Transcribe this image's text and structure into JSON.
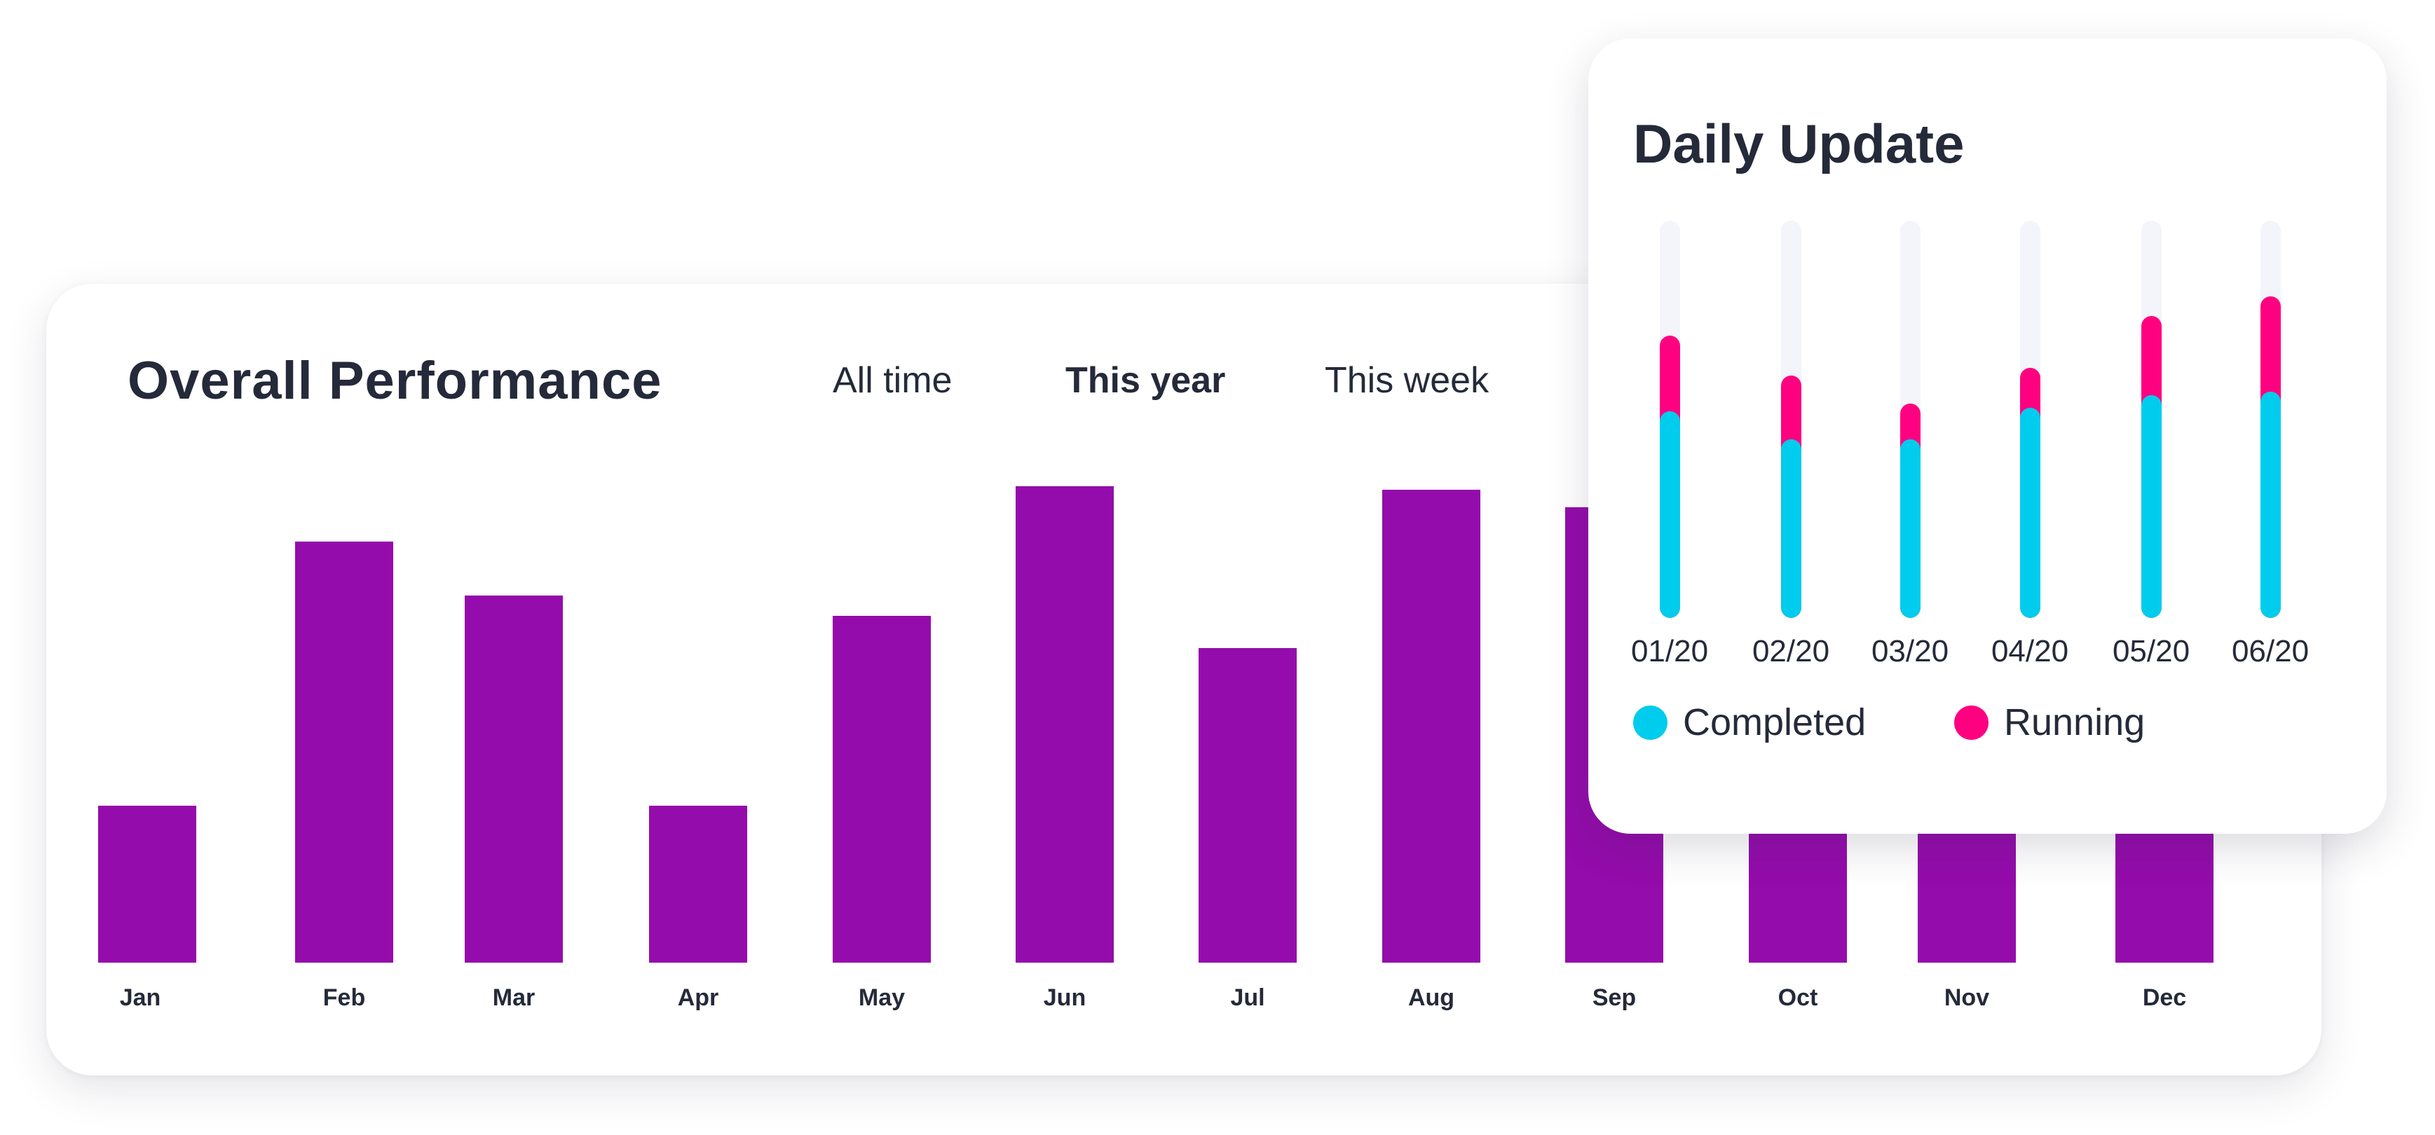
{
  "colors": {
    "bar": "#940cab",
    "completed": "#00ccee",
    "running": "#ff0080",
    "track": "#f4f5fa",
    "text": "#252a3a"
  },
  "performance": {
    "title": "Overall Performance",
    "tabs": [
      {
        "label": "All time",
        "active": false
      },
      {
        "label": "This year",
        "active": true
      },
      {
        "label": "This week",
        "active": false
      }
    ]
  },
  "daily": {
    "title": "Daily Update",
    "legend": {
      "completed": "Completed",
      "running": "Running"
    }
  },
  "chart_data": [
    {
      "type": "bar",
      "title": "Overall Performance",
      "categories": [
        "Jan",
        "Feb",
        "Mar",
        "Apr",
        "May",
        "Jun",
        "Jul",
        "Aug",
        "Sep",
        "Oct",
        "Nov",
        "Dec"
      ],
      "values": [
        99,
        266,
        232,
        99,
        219,
        301,
        199,
        299,
        288,
        220,
        180,
        260
      ],
      "ylim": [
        0,
        310
      ],
      "xlabel": "",
      "ylabel": "",
      "grid": false
    },
    {
      "type": "bar",
      "stacked": true,
      "title": "Daily Update",
      "categories": [
        "01/20",
        "02/20",
        "03/20",
        "04/20",
        "05/20",
        "06/20"
      ],
      "series": [
        {
          "name": "Completed",
          "values": [
            52,
            45,
            45,
            53,
            56,
            57
          ]
        },
        {
          "name": "Running",
          "values": [
            19,
            16,
            9,
            10,
            20,
            24
          ]
        }
      ],
      "ylim": [
        0,
        100
      ],
      "legend": "bottom-left",
      "grid": false
    }
  ]
}
